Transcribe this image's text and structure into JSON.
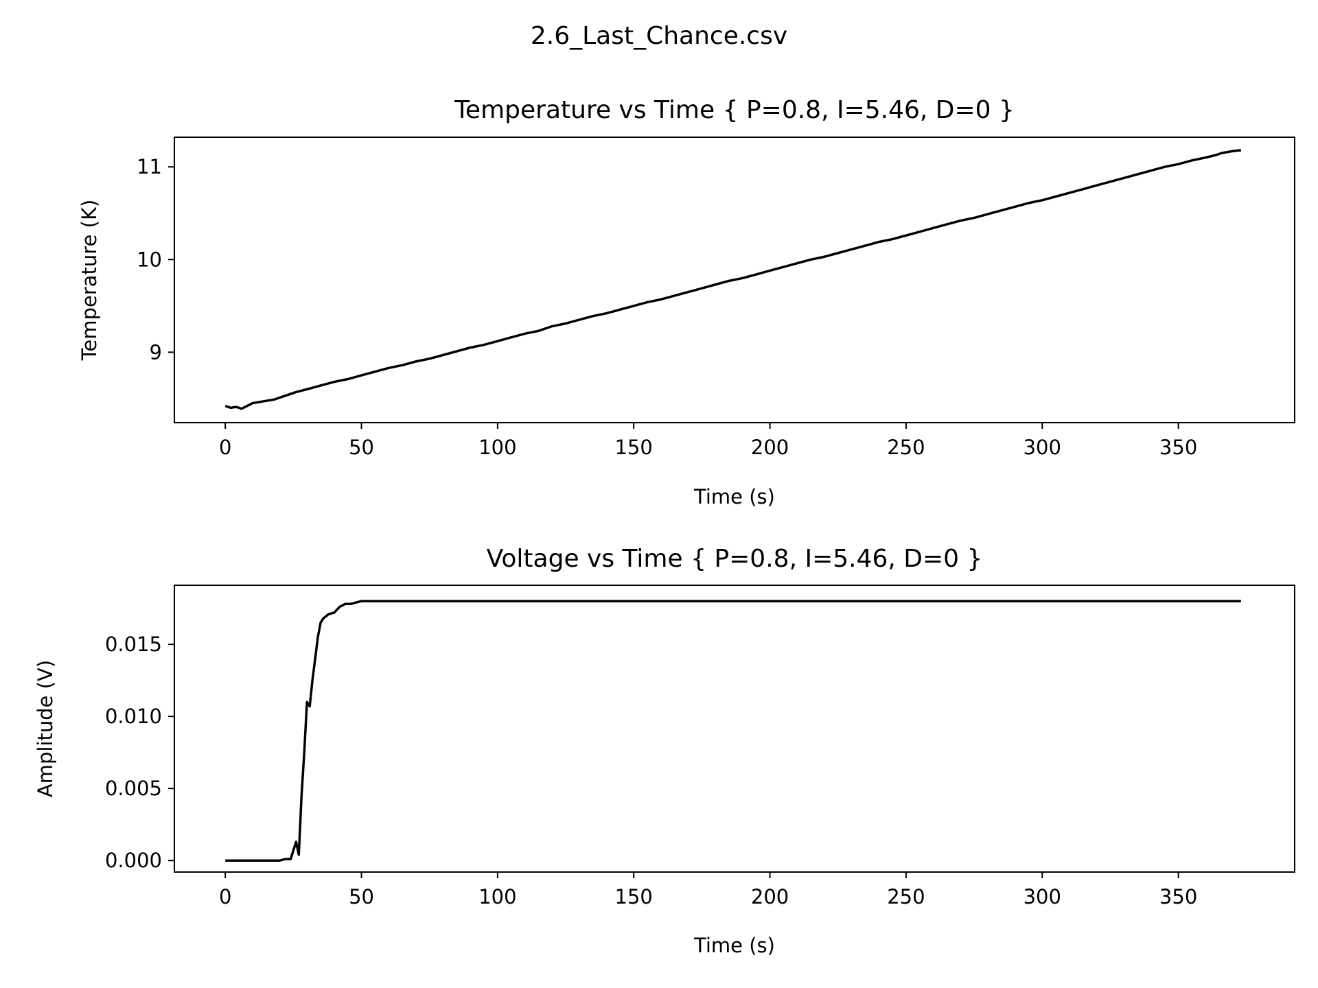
{
  "figure": {
    "suptitle": "2.6_Last_Chance.csv"
  },
  "colors": {
    "line": "#000000",
    "axes": "#000000",
    "background": "#ffffff"
  },
  "chart_data": [
    {
      "type": "line",
      "title": "Temperature vs Time { P=0.8, I=5.46, D=0 }",
      "xlabel": "Time (s)",
      "ylabel": "Temperature (K)",
      "xlim": [
        -18.7,
        392.7
      ],
      "ylim": [
        8.24,
        11.32
      ],
      "xticks": [
        0,
        50,
        100,
        150,
        200,
        250,
        300,
        350
      ],
      "xtick_labels": [
        "0",
        "50",
        "100",
        "150",
        "200",
        "250",
        "300",
        "350"
      ],
      "yticks": [
        9,
        10,
        11
      ],
      "ytick_labels": [
        "9",
        "10",
        "11"
      ],
      "grid": false,
      "legend": "none",
      "series": [
        {
          "x": [
            0,
            2,
            4,
            6,
            8,
            10,
            14,
            18,
            22,
            26,
            30,
            35,
            40,
            45,
            50,
            55,
            60,
            65,
            70,
            75,
            80,
            85,
            90,
            95,
            100,
            105,
            110,
            115,
            120,
            125,
            130,
            135,
            140,
            145,
            150,
            155,
            160,
            165,
            170,
            175,
            180,
            185,
            190,
            195,
            200,
            205,
            210,
            215,
            220,
            225,
            230,
            235,
            240,
            245,
            250,
            255,
            260,
            265,
            270,
            275,
            280,
            285,
            290,
            295,
            300,
            305,
            310,
            315,
            320,
            325,
            330,
            335,
            340,
            345,
            350,
            355,
            360,
            364,
            366,
            368,
            370,
            373
          ],
          "y": [
            8.42,
            8.4,
            8.41,
            8.39,
            8.42,
            8.45,
            8.47,
            8.49,
            8.53,
            8.57,
            8.6,
            8.64,
            8.68,
            8.71,
            8.75,
            8.79,
            8.83,
            8.86,
            8.9,
            8.93,
            8.97,
            9.01,
            9.05,
            9.08,
            9.12,
            9.16,
            9.2,
            9.23,
            9.28,
            9.31,
            9.35,
            9.39,
            9.42,
            9.46,
            9.5,
            9.54,
            9.57,
            9.61,
            9.65,
            9.69,
            9.73,
            9.77,
            9.8,
            9.84,
            9.88,
            9.92,
            9.96,
            10.0,
            10.03,
            10.07,
            10.11,
            10.15,
            10.19,
            10.22,
            10.26,
            10.3,
            10.34,
            10.38,
            10.42,
            10.45,
            10.49,
            10.53,
            10.57,
            10.61,
            10.64,
            10.68,
            10.72,
            10.76,
            10.8,
            10.84,
            10.88,
            10.92,
            10.96,
            11.0,
            11.03,
            11.07,
            11.1,
            11.13,
            11.15,
            11.16,
            11.17,
            11.18
          ]
        }
      ]
    },
    {
      "type": "line",
      "title": "Voltage vs Time { P=0.8, I=5.46, D=0 }",
      "xlabel": "Time (s)",
      "ylabel": "Amplitude (V)",
      "xlim": [
        -18.7,
        392.7
      ],
      "ylim": [
        -0.0008,
        0.0191
      ],
      "xticks": [
        0,
        50,
        100,
        150,
        200,
        250,
        300,
        350
      ],
      "xtick_labels": [
        "0",
        "50",
        "100",
        "150",
        "200",
        "250",
        "300",
        "350"
      ],
      "yticks": [
        0.0,
        0.005,
        0.01,
        0.015
      ],
      "ytick_labels": [
        "0.000",
        "0.005",
        "0.010",
        "0.015"
      ],
      "grid": false,
      "legend": "none",
      "series": [
        {
          "x": [
            0,
            5,
            10,
            15,
            20,
            22,
            24,
            25,
            26,
            27,
            28,
            29,
            30,
            31,
            32,
            33,
            34,
            35,
            36,
            38,
            40,
            42,
            44,
            46,
            48,
            50,
            55,
            60,
            65,
            70,
            75,
            80,
            90,
            100,
            110,
            120,
            130,
            140,
            150,
            160,
            170,
            180,
            190,
            200,
            210,
            220,
            230,
            240,
            250,
            260,
            270,
            280,
            290,
            300,
            310,
            320,
            330,
            340,
            350,
            360,
            365,
            370,
            373
          ],
          "y": [
            0.0,
            0.0,
            0.0,
            0.0,
            0.0,
            0.0001,
            0.0001,
            0.0007,
            0.0013,
            0.0004,
            0.0045,
            0.0075,
            0.011,
            0.0107,
            0.0125,
            0.014,
            0.0155,
            0.0165,
            0.0168,
            0.0171,
            0.0172,
            0.0176,
            0.0178,
            0.0178,
            0.0179,
            0.018,
            0.018,
            0.018,
            0.018,
            0.018,
            0.018,
            0.018,
            0.018,
            0.018,
            0.018,
            0.018,
            0.018,
            0.018,
            0.018,
            0.018,
            0.018,
            0.018,
            0.018,
            0.018,
            0.018,
            0.018,
            0.018,
            0.018,
            0.018,
            0.018,
            0.018,
            0.018,
            0.018,
            0.018,
            0.018,
            0.018,
            0.018,
            0.018,
            0.018,
            0.018,
            0.018,
            0.018,
            0.018
          ]
        }
      ]
    }
  ]
}
